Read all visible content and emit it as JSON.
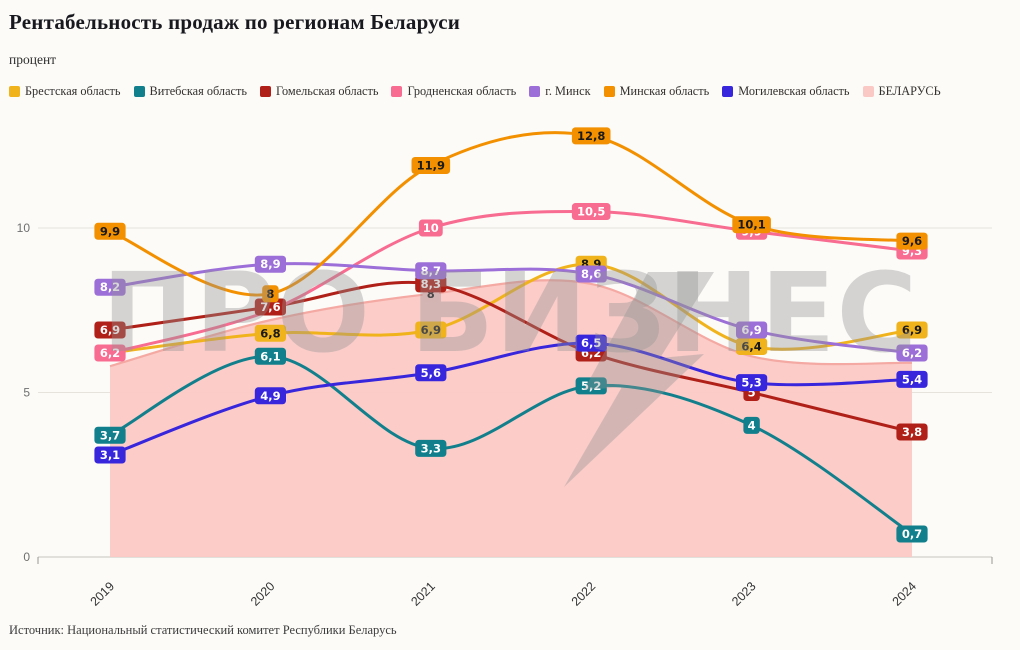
{
  "title": "Рентабельность продаж по регионам Беларуси",
  "subtitle": "процент",
  "source": "Источник: Национальный статистический комитет Республики Беларусь",
  "watermark": "ПРО БИЗНЕС",
  "chart_data": {
    "type": "line",
    "title": "Рентабельность продаж по регионам Беларуси",
    "ylabel": "процент",
    "x": [
      2019,
      2020,
      2021,
      2022,
      2023,
      2024
    ],
    "yticks": [
      0,
      5,
      10
    ],
    "ylim": [
      0,
      13.5
    ],
    "grid": true,
    "legend_position": "top",
    "series": [
      {
        "name": "Брестская область",
        "type": "line",
        "color": "#f0b31c",
        "label_text_color": "#1a1a1a",
        "values": [
          6.2,
          6.8,
          6.9,
          8.9,
          6.4,
          6.9
        ],
        "labels": [
          null,
          "6,8",
          "6,9",
          "8,9",
          "6,4",
          "6,9"
        ]
      },
      {
        "name": "Витебская область",
        "type": "line",
        "color": "#11808c",
        "label_text_color": "#ffffff",
        "values": [
          3.7,
          6.1,
          3.3,
          5.2,
          4,
          0.7
        ],
        "labels": [
          "3,7",
          "6,1",
          "3,3",
          "5,2",
          "4",
          "0,7"
        ]
      },
      {
        "name": "Гомельская область",
        "type": "line",
        "color": "#b02018",
        "label_text_color": "#ffffff",
        "values": [
          6.9,
          7.6,
          8.3,
          6.2,
          5,
          3.8
        ],
        "labels": [
          "6,9",
          "7,6",
          "8,3",
          "6,2",
          "5",
          "3,8"
        ]
      },
      {
        "name": "Гродненская область",
        "type": "line",
        "color": "#f76c90",
        "label_text_color": "#ffffff",
        "values": [
          6.2,
          7.5,
          10,
          10.5,
          9.9,
          9.3
        ],
        "labels": [
          "6,2",
          null,
          "10",
          "10,5",
          "9,9",
          "9,3"
        ]
      },
      {
        "name": "г. Минск",
        "type": "line",
        "color": "#9c6fd8",
        "label_text_color": "#ffffff",
        "values": [
          8.2,
          8.9,
          8.7,
          8.6,
          6.9,
          6.2
        ],
        "labels": [
          "8,2",
          "8,9",
          "8,7",
          "8,6",
          "6,9",
          "6,2"
        ]
      },
      {
        "name": "Минская область",
        "type": "line",
        "color": "#f29000",
        "label_text_color": "#1a1a1a",
        "values": [
          9.9,
          8,
          11.9,
          12.8,
          10.1,
          9.6
        ],
        "labels": [
          "9,9",
          "8",
          "11,9",
          "12,8",
          "10,1",
          "9,6"
        ]
      },
      {
        "name": "Могилевская область",
        "type": "line",
        "color": "#3826dc",
        "label_text_color": "#ffffff",
        "values": [
          3.1,
          4.9,
          5.6,
          6.5,
          5.3,
          5.4
        ],
        "labels": [
          "3,1",
          "4,9",
          "5,6",
          "6,5",
          "5,3",
          "5,4"
        ]
      },
      {
        "name": "БЕЛАРУСЬ",
        "type": "area",
        "color": "#fbc9c5",
        "label_text_color": "#1a1a1a",
        "values": [
          5.8,
          7.2,
          8,
          8.3,
          6.1,
          5.9
        ],
        "labels": [
          null,
          null,
          "8",
          null,
          null,
          null
        ]
      }
    ]
  }
}
